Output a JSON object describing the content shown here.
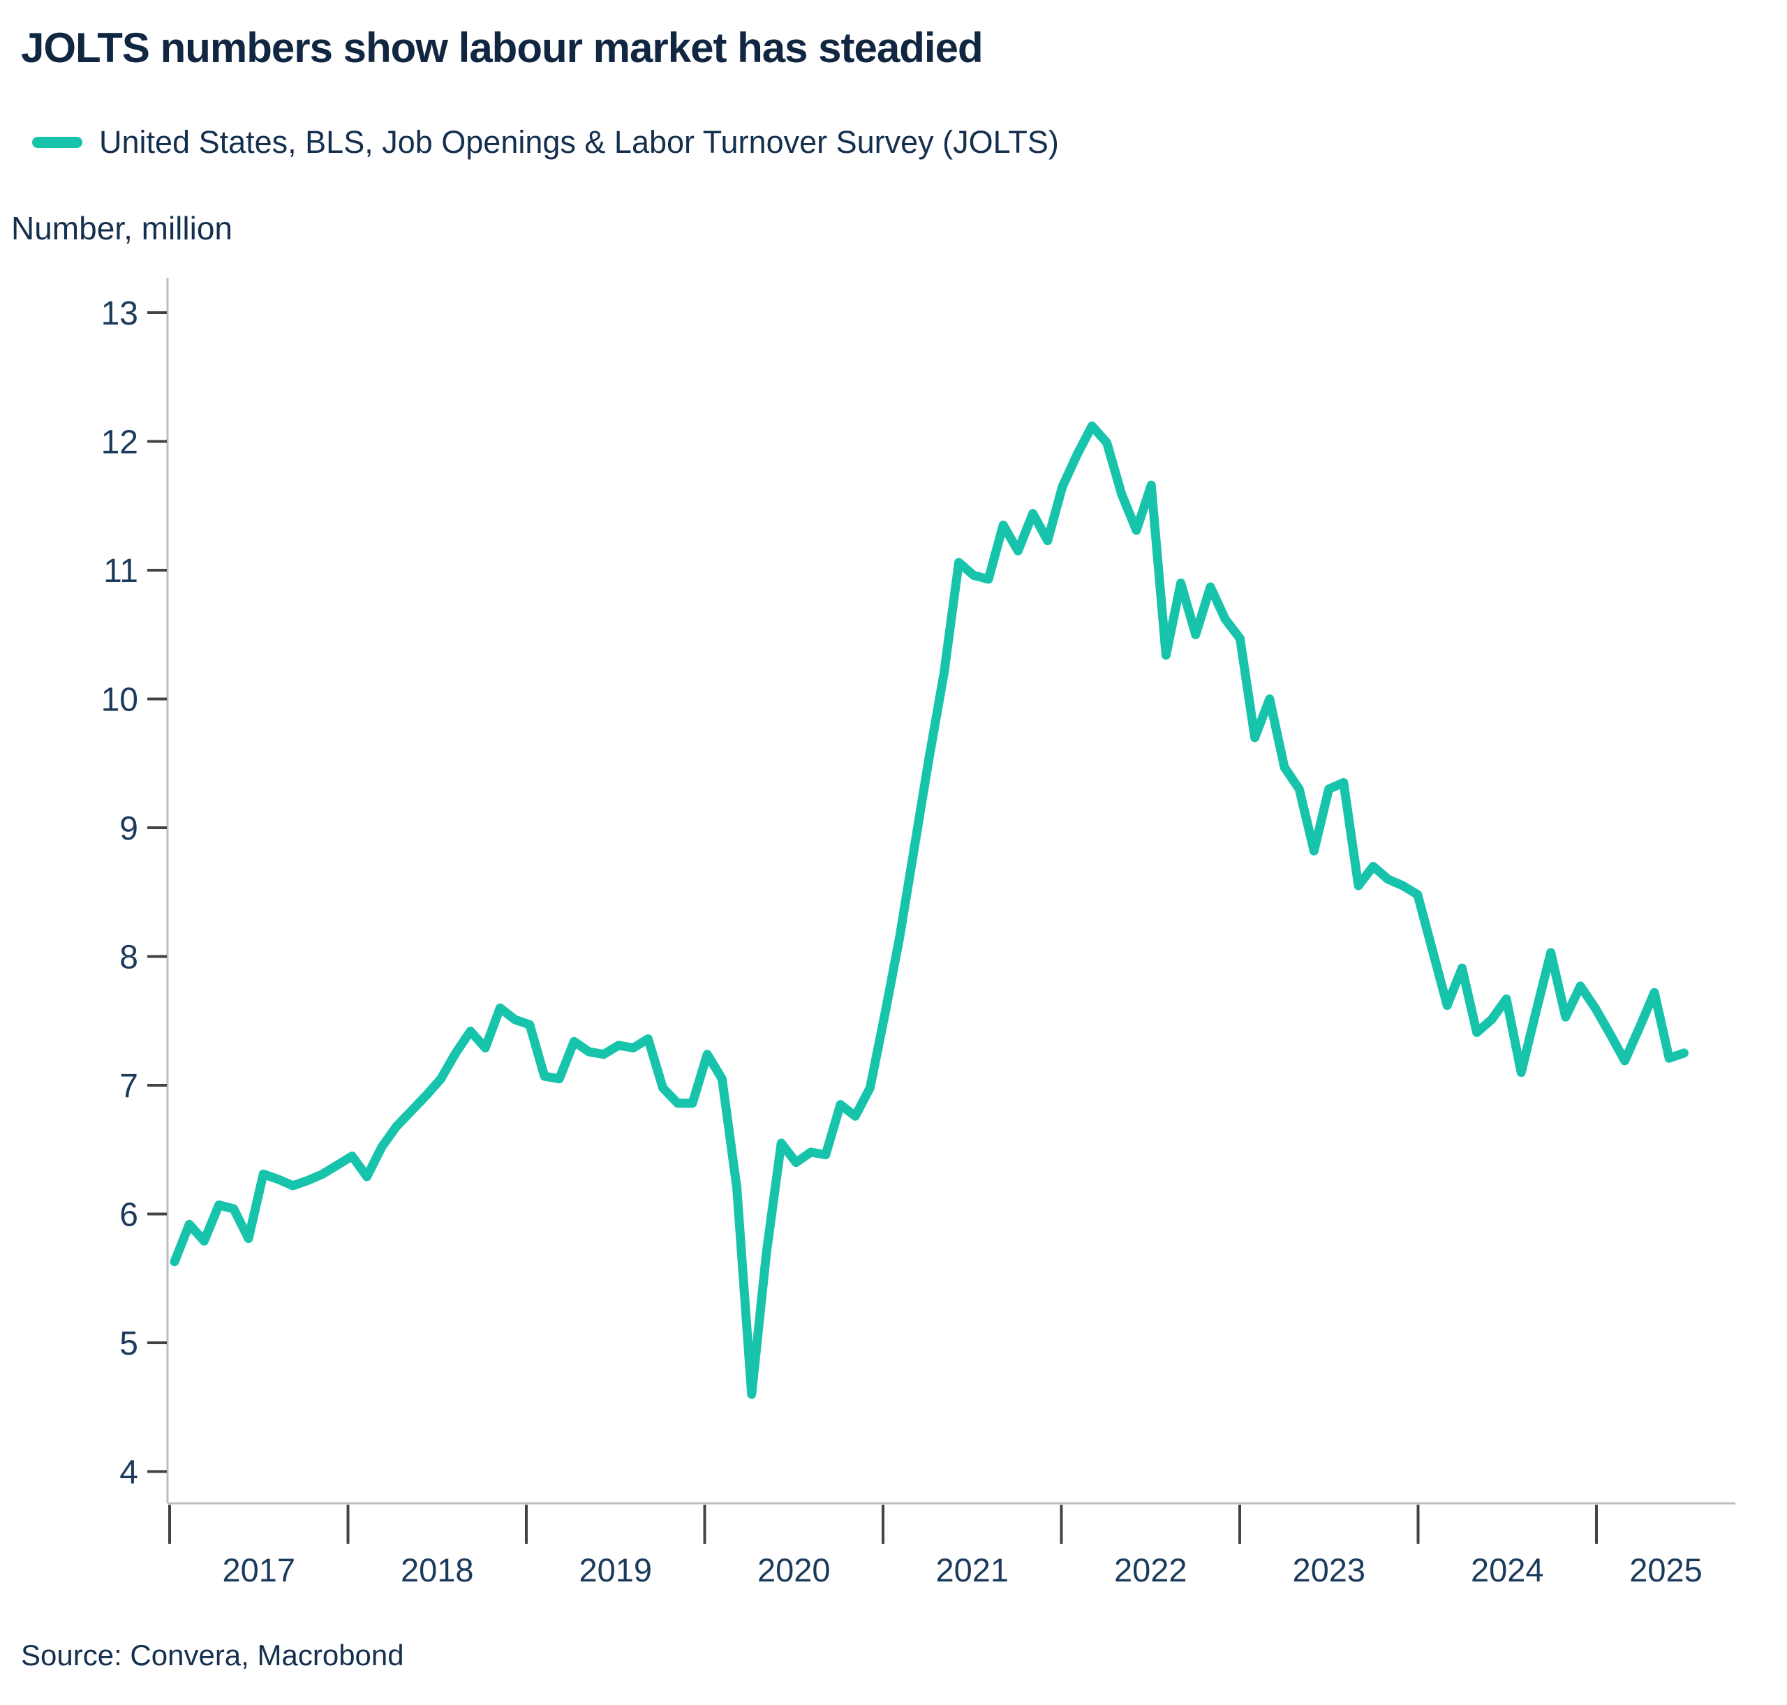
{
  "header": {
    "title": "JOLTS numbers show labour market has steadied",
    "legend_label": "United States, BLS, Job Openings & Labor Turnover Survey (JOLTS)"
  },
  "footer": {
    "source": "Source: Convera, Macrobond"
  },
  "colors": {
    "accent_teal": "#17C4AB",
    "title_navy": "#112640",
    "text_navy": "#15304E",
    "tick_label_navy": "#1C3A5C",
    "axis_line_gray": "#BDBDBD",
    "tick_mark_gray": "#404448"
  },
  "chart_data": {
    "type": "line",
    "title": "JOLTS numbers show labour market has steadied",
    "series_name": "United States, BLS, Job Openings & Labor Turnover Survey (JOLTS)",
    "ylabel": "Number, million",
    "xlabel": "",
    "frequency": "monthly",
    "x_start": "2017-01",
    "x_end": "2025-07",
    "x_tick_labels": [
      "2017",
      "2018",
      "2019",
      "2020",
      "2021",
      "2022",
      "2023",
      "2024",
      "2025"
    ],
    "yticks": [
      4,
      5,
      6,
      7,
      8,
      9,
      10,
      11,
      12,
      13
    ],
    "ylim": [
      3.75,
      13.27
    ],
    "grid": false,
    "legend_position": "top-left",
    "line_color": "#17C4AB",
    "values_by_year": {
      "2017": [
        5.63,
        5.92,
        5.79,
        6.07,
        6.04,
        5.81,
        6.31,
        6.27,
        6.22,
        6.26,
        6.31,
        6.38
      ],
      "2018": [
        6.45,
        6.29,
        6.52,
        6.68,
        6.8,
        6.92,
        7.05,
        7.25,
        7.42,
        7.29,
        7.6,
        7.51
      ],
      "2019": [
        7.47,
        7.07,
        7.05,
        7.34,
        7.26,
        7.24,
        7.31,
        7.29,
        7.36,
        6.98,
        6.86,
        6.86
      ],
      "2020": [
        7.24,
        7.05,
        6.2,
        4.6,
        5.7,
        6.55,
        6.4,
        6.48,
        6.46,
        6.85,
        6.76,
        6.98
      ],
      "2021": [
        7.55,
        8.15,
        8.85,
        9.55,
        10.2,
        11.06,
        10.96,
        10.93,
        11.35,
        11.15,
        11.44,
        11.23
      ],
      "2022": [
        11.65,
        11.9,
        12.12,
        11.99,
        11.59,
        11.31,
        11.66,
        10.34,
        10.9,
        10.5,
        10.87,
        10.62
      ],
      "2023": [
        10.47,
        9.7,
        10.0,
        9.47,
        9.3,
        8.82,
        9.3,
        9.35,
        8.55,
        8.7,
        8.6,
        8.55
      ],
      "2024": [
        8.48,
        8.05,
        7.62,
        7.91,
        7.41,
        7.51,
        7.67,
        7.1,
        7.57,
        8.03,
        7.53,
        7.77
      ],
      "2025": [
        7.6,
        7.4,
        7.19,
        7.45,
        7.72,
        7.21,
        7.25
      ]
    }
  }
}
